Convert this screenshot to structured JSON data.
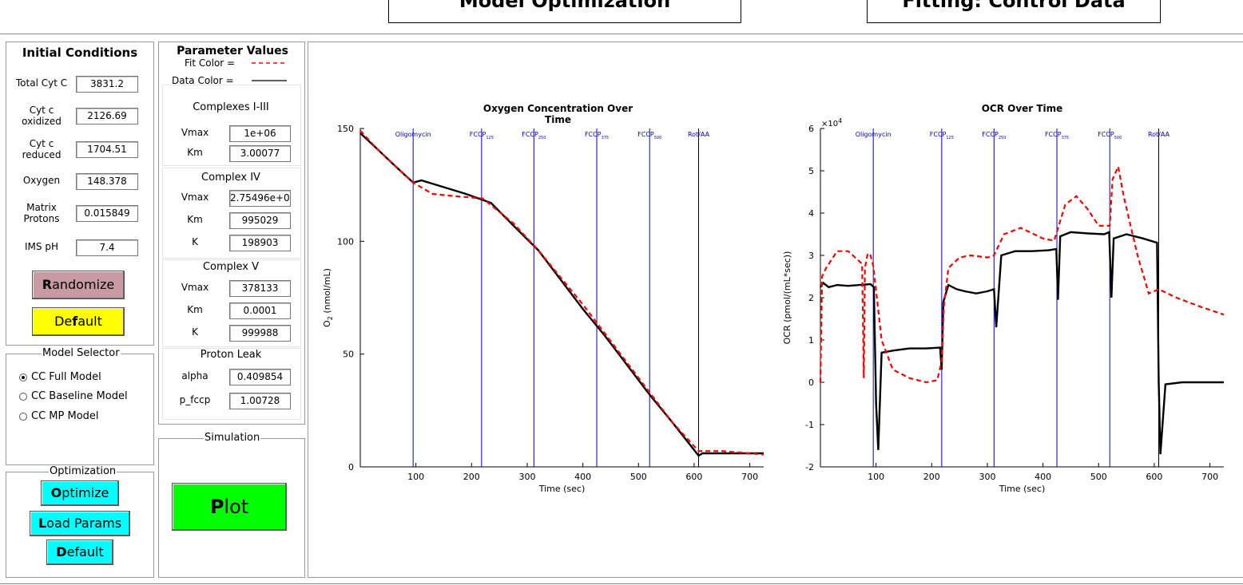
{
  "header": {
    "left_title": "Model Optimization",
    "right_title": "Fitting: Control Data"
  },
  "initial_conditions": {
    "title": "Initial Conditions",
    "fields": [
      {
        "label": "Total Cyt C",
        "value": "3831.2"
      },
      {
        "label": "Cyt c\noxidized",
        "value": "2126.69"
      },
      {
        "label": "Cyt c\nreduced",
        "value": "1704.51"
      },
      {
        "label": "Oxygen",
        "value": "148.378"
      },
      {
        "label": "Matrix\nProtons",
        "value": "0.015849"
      },
      {
        "label": "IMS pH",
        "value": "7.4"
      }
    ],
    "randomize_label": "Randomize",
    "default_label": "Default"
  },
  "model_selector": {
    "title": "Model Selector",
    "options": [
      "CC Full Model",
      "CC Baseline Model",
      "CC MP Model"
    ],
    "selected": "CC Full Model"
  },
  "optimization": {
    "title": "Optimization",
    "optimize_label": "Optimize",
    "load_params_label": "Load Params",
    "default_label": "Default"
  },
  "parameter_values": {
    "title": "Parameter Values",
    "fit_color_label": "Fit Color =",
    "data_color_label": "Data Color =",
    "groups": [
      {
        "title": "Complexes I-III",
        "params": [
          {
            "label": "Vmax",
            "value": "1e+06"
          },
          {
            "label": "Km",
            "value": "3.00077"
          }
        ]
      },
      {
        "title": "Complex IV",
        "params": [
          {
            "label": "Vmax",
            "value": "2.75496e+0"
          },
          {
            "label": "Km",
            "value": "995029"
          },
          {
            "label": "K",
            "value": "198903"
          }
        ]
      },
      {
        "title": "Complex V",
        "params": [
          {
            "label": "Vmax",
            "value": "378133"
          },
          {
            "label": "Km",
            "value": "0.0001"
          },
          {
            "label": "K",
            "value": "999988"
          }
        ]
      },
      {
        "title": "Proton Leak",
        "params": [
          {
            "label": "alpha",
            "value": "0.409854"
          },
          {
            "label": "p_fccp",
            "value": "1.00728"
          }
        ]
      }
    ]
  },
  "simulation": {
    "title": "Simulation",
    "plot_label": "Plot"
  },
  "colors": {
    "fit": "#ff0000",
    "data": "#000000",
    "event_line": "#0000cc",
    "randomize_button": "#c89aa2",
    "default_button": "#ffff00",
    "cyan_button": "#00ffff",
    "plot_button": "#00ff00"
  },
  "chart_data": [
    {
      "type": "line",
      "title": "Oxygen Concentration Over\nTime",
      "xlabel": "Time (sec)",
      "ylabel": "O2 (nmol/mL)",
      "xlim": [
        0,
        725
      ],
      "ylim": [
        0,
        150
      ],
      "x_ticks": [
        100,
        200,
        300,
        400,
        500,
        600,
        700
      ],
      "y_ticks": [
        0,
        50,
        100,
        150
      ],
      "events": [
        {
          "label": "Oligomycin",
          "sub": "",
          "x": 95
        },
        {
          "label": "FCCP",
          "sub": "125",
          "x": 218
        },
        {
          "label": "FCCP",
          "sub": "250",
          "x": 312
        },
        {
          "label": "FCCP",
          "sub": "375",
          "x": 425
        },
        {
          "label": "FCCP",
          "sub": "500",
          "x": 520
        },
        {
          "label": "Rot/AA",
          "sub": "",
          "x": 608
        }
      ],
      "series": [
        {
          "role": "data",
          "x": [
            0,
            30,
            60,
            95,
            110,
            150,
            190,
            235,
            275,
            320,
            360,
            400,
            440,
            480,
            520,
            560,
            608,
            615,
            650,
            725
          ],
          "y": [
            148,
            141,
            134,
            126,
            127,
            124,
            121,
            117,
            107,
            96,
            83,
            70,
            58,
            45,
            32,
            20,
            5,
            6,
            6,
            6
          ]
        },
        {
          "role": "fit",
          "x": [
            0,
            30,
            60,
            95,
            130,
            170,
            220,
            240,
            275,
            320,
            360,
            400,
            440,
            480,
            520,
            560,
            608,
            615,
            650,
            725
          ],
          "y": [
            149,
            141,
            134,
            126,
            121,
            120,
            119,
            115,
            108,
            96,
            84,
            72,
            59,
            46,
            33,
            20,
            7,
            7,
            7,
            5.5
          ]
        }
      ]
    },
    {
      "type": "line",
      "title": "OCR Over Time",
      "xlabel": "Time (sec)",
      "ylabel": "OCR (pmol/(mL*sec))",
      "y_multiplier": "×10^4",
      "xlim": [
        0,
        725
      ],
      "ylim": [
        -20000,
        60000
      ],
      "x_ticks": [
        100,
        200,
        300,
        400,
        500,
        600,
        700
      ],
      "y_ticks": [
        -20000,
        -10000,
        0,
        10000,
        20000,
        30000,
        40000,
        50000,
        60000
      ],
      "y_tick_labels": [
        "-2",
        "-1",
        "0",
        "1",
        "2",
        "3",
        "4",
        "5",
        "6"
      ],
      "events": [
        {
          "label": "Oligomycin",
          "sub": "",
          "x": 95
        },
        {
          "label": "FCCP",
          "sub": "125",
          "x": 218
        },
        {
          "label": "FCCP",
          "sub": "250",
          "x": 312
        },
        {
          "label": "FCCP",
          "sub": "375",
          "x": 425
        },
        {
          "label": "FCCP",
          "sub": "500",
          "x": 520
        },
        {
          "label": "Rot/AA",
          "sub": "",
          "x": 608
        }
      ],
      "series": [
        {
          "role": "data",
          "x": [
            0,
            5,
            15,
            30,
            50,
            70,
            90,
            96,
            100,
            104,
            110,
            130,
            160,
            190,
            215,
            218,
            221,
            230,
            245,
            260,
            280,
            300,
            312,
            316,
            325,
            350,
            380,
            410,
            424,
            427,
            431,
            450,
            480,
            510,
            519,
            523,
            527,
            550,
            580,
            605,
            608,
            611,
            620,
            650,
            700,
            725
          ],
          "y": [
            22500,
            23500,
            22500,
            23000,
            22800,
            23000,
            23200,
            22500,
            -5000,
            -16000,
            7000,
            7500,
            8000,
            8000,
            8200,
            3000,
            19000,
            23000,
            22000,
            21500,
            21000,
            21500,
            22000,
            13000,
            30000,
            31000,
            31000,
            31200,
            31500,
            19500,
            34500,
            35500,
            35200,
            35000,
            35500,
            20000,
            34000,
            35000,
            34000,
            33000,
            0,
            -17000,
            -500,
            0,
            0,
            0
          ]
        },
        {
          "role": "fit",
          "x": [
            0,
            3,
            10,
            30,
            50,
            75,
            78,
            80,
            85,
            90,
            95,
            110,
            130,
            160,
            190,
            210,
            218,
            222,
            230,
            250,
            270,
            300,
            312,
            330,
            360,
            400,
            420,
            440,
            460,
            480,
            500,
            520,
            525,
            535,
            545,
            570,
            590,
            608,
            640,
            680,
            725
          ],
          "y": [
            0,
            25000,
            27000,
            31000,
            31000,
            28000,
            1000,
            27000,
            30500,
            30000,
            27500,
            10000,
            3000,
            1000,
            0,
            500,
            5000,
            18000,
            27000,
            29500,
            30000,
            29500,
            30000,
            35000,
            36500,
            34000,
            33500,
            42000,
            44000,
            41000,
            37000,
            37000,
            48000,
            51000,
            44000,
            30000,
            21000,
            22000,
            20000,
            18000,
            16000
          ]
        }
      ]
    }
  ]
}
